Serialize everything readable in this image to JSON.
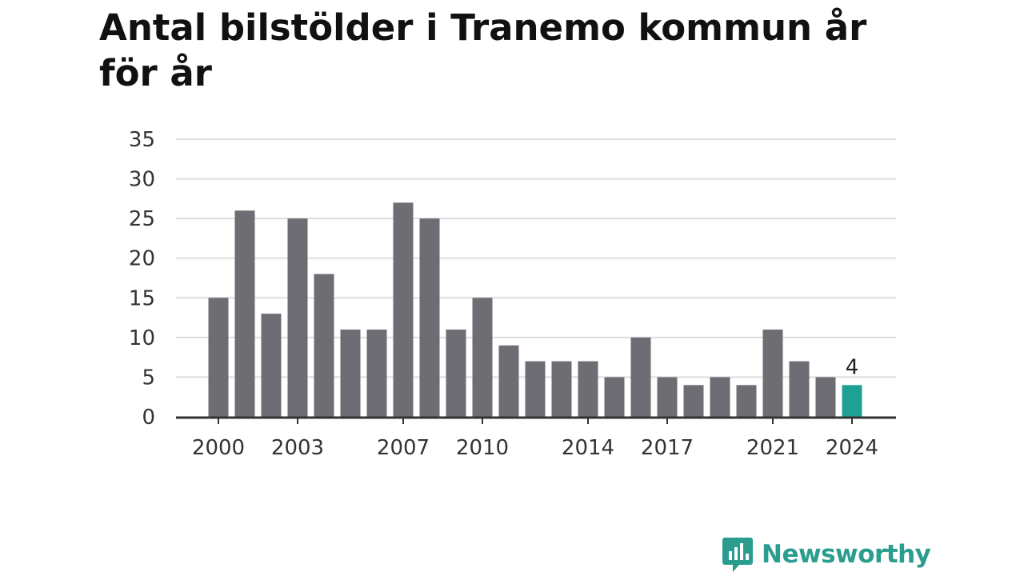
{
  "chart_data": {
    "type": "bar",
    "title": "Antal bilstölder i Tranemo kommun år för år",
    "x": [
      2000,
      2001,
      2002,
      2003,
      2004,
      2005,
      2006,
      2007,
      2008,
      2009,
      2010,
      2011,
      2012,
      2013,
      2014,
      2015,
      2016,
      2017,
      2018,
      2019,
      2020,
      2021,
      2022,
      2023,
      2024
    ],
    "values": [
      15,
      26,
      13,
      25,
      18,
      11,
      11,
      27,
      25,
      11,
      15,
      9,
      7,
      7,
      7,
      5,
      10,
      5,
      4,
      5,
      4,
      11,
      7,
      5,
      4
    ],
    "x_tick_labels": [
      "2000",
      "2003",
      "2007",
      "2010",
      "2014",
      "2017",
      "2021",
      "2024"
    ],
    "y_ticks": [
      0,
      5,
      10,
      15,
      20,
      25,
      30,
      35
    ],
    "ylim": [
      0,
      35
    ],
    "grid": true,
    "colors": {
      "bar": "#6e6d73",
      "highlight": "#1fa095",
      "grid": "#dddddd",
      "axis": "#333333"
    },
    "highlight_index": 24,
    "data_labels": [
      {
        "index": 24,
        "text": "4"
      }
    ]
  },
  "branding": {
    "name": "Newsworthy",
    "icon": "newsworthy-logo-icon",
    "color": "#2a9d8f"
  }
}
